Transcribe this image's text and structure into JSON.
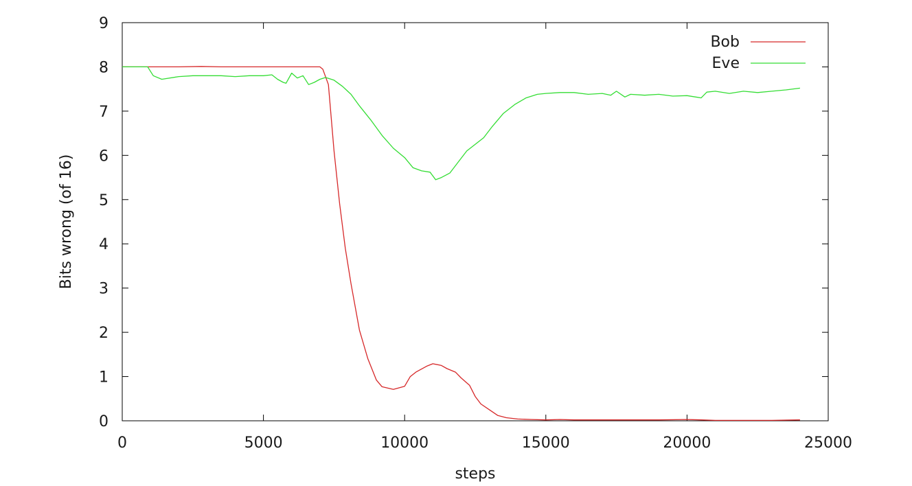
{
  "chart_data": {
    "type": "line",
    "title": "",
    "xlabel": "steps",
    "ylabel": "Bits wrong (of 16)",
    "xlim": [
      0,
      25000
    ],
    "ylim": [
      0,
      9
    ],
    "xticks": [
      0,
      5000,
      10000,
      15000,
      20000,
      25000
    ],
    "yticks": [
      0,
      1,
      2,
      3,
      4,
      5,
      6,
      7,
      8,
      9
    ],
    "grid": false,
    "legend_position": "top-right",
    "series": [
      {
        "name": "Bob",
        "color": "#d62728",
        "x": [
          0,
          1000,
          2000,
          2800,
          3500,
          4500,
          5500,
          6500,
          6800,
          7000,
          7100,
          7300,
          7500,
          7700,
          7900,
          8100,
          8400,
          8700,
          9000,
          9200,
          9600,
          10000,
          10200,
          10400,
          10800,
          11000,
          11300,
          11500,
          11800,
          12000,
          12300,
          12500,
          12700,
          13000,
          13300,
          13600,
          14000,
          14500,
          15000,
          15500,
          16000,
          17000,
          18000,
          19000,
          20000,
          20500,
          21000,
          22000,
          23000,
          24000
        ],
        "y": [
          8.0,
          8.0,
          8.0,
          8.01,
          8.0,
          8.0,
          8.0,
          8.0,
          8.0,
          8.0,
          7.95,
          7.6,
          6.1,
          4.9,
          3.9,
          3.1,
          2.05,
          1.4,
          0.92,
          0.77,
          0.71,
          0.78,
          1.0,
          1.1,
          1.24,
          1.29,
          1.25,
          1.18,
          1.1,
          0.97,
          0.8,
          0.55,
          0.38,
          0.25,
          0.12,
          0.07,
          0.04,
          0.03,
          0.02,
          0.03,
          0.02,
          0.02,
          0.02,
          0.02,
          0.03,
          0.02,
          0.01,
          0.01,
          0.01,
          0.02
        ]
      },
      {
        "name": "Eve",
        "color": "#33dd33",
        "x": [
          0,
          900,
          1100,
          1400,
          2000,
          2500,
          3000,
          3500,
          4000,
          4500,
          5000,
          5300,
          5500,
          5700,
          5800,
          6000,
          6200,
          6400,
          6600,
          6800,
          7000,
          7200,
          7500,
          7800,
          8100,
          8400,
          8800,
          9200,
          9600,
          10000,
          10300,
          10600,
          10900,
          11100,
          11300,
          11600,
          11900,
          12200,
          12500,
          12800,
          13100,
          13500,
          13900,
          14300,
          14700,
          15000,
          15500,
          16000,
          16500,
          17000,
          17300,
          17500,
          17800,
          18000,
          18500,
          19000,
          19500,
          20000,
          20500,
          20700,
          21000,
          21500,
          22000,
          22500,
          23000,
          23500,
          24000
        ],
        "y": [
          8.0,
          8.0,
          7.8,
          7.72,
          7.78,
          7.8,
          7.8,
          7.8,
          7.78,
          7.8,
          7.8,
          7.82,
          7.72,
          7.65,
          7.63,
          7.86,
          7.75,
          7.8,
          7.6,
          7.65,
          7.72,
          7.76,
          7.7,
          7.56,
          7.38,
          7.12,
          6.8,
          6.45,
          6.16,
          5.95,
          5.72,
          5.65,
          5.62,
          5.45,
          5.5,
          5.6,
          5.85,
          6.1,
          6.25,
          6.4,
          6.65,
          6.95,
          7.15,
          7.3,
          7.38,
          7.4,
          7.42,
          7.42,
          7.38,
          7.4,
          7.36,
          7.45,
          7.32,
          7.38,
          7.36,
          7.38,
          7.34,
          7.35,
          7.3,
          7.43,
          7.45,
          7.4,
          7.45,
          7.42,
          7.45,
          7.48,
          7.52
        ]
      }
    ]
  }
}
